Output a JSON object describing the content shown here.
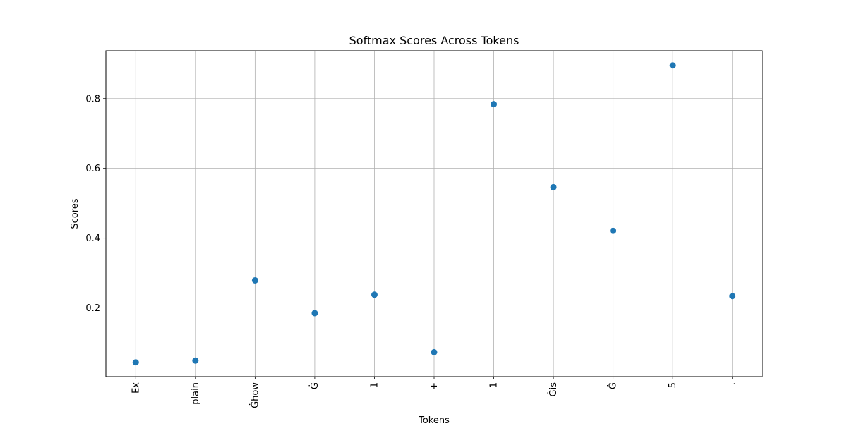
{
  "chart_data": {
    "type": "scatter",
    "title": "Softmax Scores Across Tokens",
    "xlabel": "Tokens",
    "ylabel": "Scores",
    "categories": [
      "Ex",
      "plain",
      "Ġhow",
      "Ġ",
      "1",
      "+",
      "1",
      "Ġis",
      "Ġ",
      "5",
      "."
    ],
    "series": [
      {
        "values": [
          0.044,
          0.049,
          0.279,
          0.185,
          0.238,
          0.073,
          0.784,
          0.546,
          0.421,
          0.895,
          0.234
        ]
      }
    ],
    "ylim": [
      0.003,
      0.937
    ],
    "yticks": [
      0.2,
      0.4,
      0.6,
      0.8
    ],
    "ytick_labels": [
      "0.2",
      "0.4",
      "0.6",
      "0.8"
    ],
    "grid": true,
    "marker_color": "#1f77b4"
  }
}
